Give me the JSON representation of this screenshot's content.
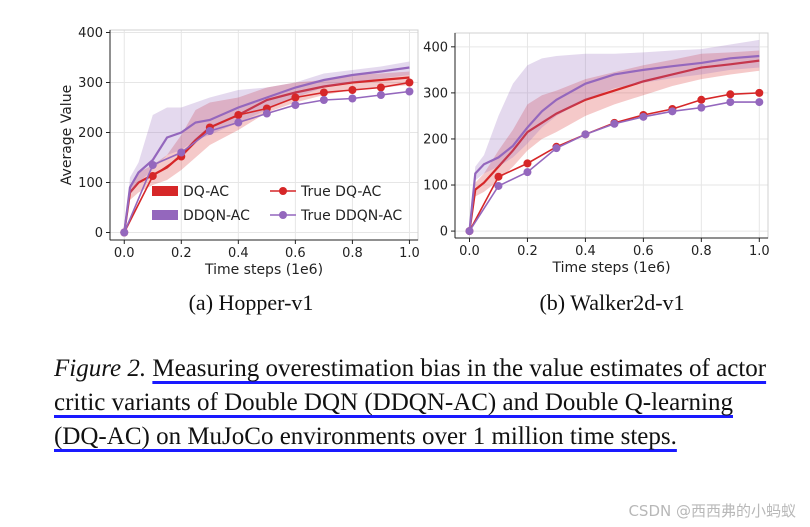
{
  "colors": {
    "dq": "#d62728",
    "ddqn": "#9467bd",
    "grid": "#e6e6e6",
    "axis": "#222222"
  },
  "chart_data": [
    {
      "type": "line",
      "subtitle": "(a) Hopper-v1",
      "xlabel": "Time steps (1e6)",
      "ylabel": "Average Value",
      "xlim": [
        -0.05,
        1.03
      ],
      "ylim": [
        -15,
        405
      ],
      "xticks": [
        0.0,
        0.2,
        0.4,
        0.6,
        0.8,
        1.0
      ],
      "xtick_labels": [
        "0.0",
        "0.2",
        "0.4",
        "0.6",
        "0.8",
        "1.0"
      ],
      "yticks": [
        0,
        100,
        200,
        300,
        400
      ],
      "ytick_labels": [
        "0",
        "100",
        "200",
        "300",
        "400"
      ],
      "grid": true,
      "legend": [
        "DQ-AC",
        "DDQN-AC",
        "True DQ-AC",
        "True DDQN-AC"
      ],
      "legend_placement": "lower-right",
      "series": [
        {
          "name": "DQ-AC",
          "style": "band",
          "color": "dq",
          "x": [
            0,
            0.02,
            0.05,
            0.1,
            0.15,
            0.2,
            0.25,
            0.3,
            0.4,
            0.5,
            0.6,
            0.7,
            0.8,
            0.9,
            1.0
          ],
          "y": [
            0,
            80,
            100,
            115,
            130,
            155,
            185,
            210,
            235,
            265,
            280,
            292,
            300,
            305,
            310
          ],
          "lower": [
            0,
            65,
            80,
            95,
            105,
            125,
            150,
            175,
            205,
            240,
            260,
            275,
            285,
            290,
            295
          ],
          "upper": [
            0,
            95,
            120,
            135,
            155,
            195,
            245,
            260,
            270,
            290,
            300,
            305,
            315,
            318,
            322
          ]
        },
        {
          "name": "DDQN-AC",
          "style": "band",
          "color": "ddqn",
          "x": [
            0,
            0.02,
            0.05,
            0.1,
            0.15,
            0.2,
            0.25,
            0.3,
            0.4,
            0.5,
            0.6,
            0.7,
            0.8,
            0.9,
            1.0
          ],
          "y": [
            0,
            90,
            120,
            145,
            190,
            200,
            220,
            225,
            250,
            270,
            290,
            305,
            315,
            322,
            330
          ],
          "lower": [
            0,
            75,
            100,
            125,
            155,
            165,
            185,
            195,
            220,
            245,
            270,
            290,
            300,
            308,
            315
          ],
          "upper": [
            0,
            110,
            140,
            235,
            250,
            250,
            260,
            270,
            285,
            290,
            300,
            318,
            325,
            332,
            342
          ]
        },
        {
          "name": "True DQ-AC",
          "style": "markers",
          "color": "dq",
          "x": [
            0,
            0.1,
            0.2,
            0.3,
            0.4,
            0.5,
            0.6,
            0.7,
            0.8,
            0.9,
            1.0
          ],
          "y": [
            0,
            113,
            152,
            210,
            235,
            248,
            270,
            280,
            285,
            290,
            300
          ]
        },
        {
          "name": "True DDQN-AC",
          "style": "markers",
          "color": "ddqn",
          "x": [
            0,
            0.1,
            0.2,
            0.3,
            0.4,
            0.5,
            0.6,
            0.7,
            0.8,
            0.9,
            1.0
          ],
          "y": [
            0,
            135,
            160,
            203,
            220,
            238,
            255,
            265,
            268,
            275,
            282
          ]
        }
      ]
    },
    {
      "type": "line",
      "subtitle": "(b) Walker2d-v1",
      "xlabel": "Time steps (1e6)",
      "ylabel": "",
      "xlim": [
        -0.05,
        1.03
      ],
      "ylim": [
        -15,
        430
      ],
      "xticks": [
        0.0,
        0.2,
        0.4,
        0.6,
        0.8,
        1.0
      ],
      "xtick_labels": [
        "0.0",
        "0.2",
        "0.4",
        "0.6",
        "0.8",
        "1.0"
      ],
      "yticks": [
        0,
        100,
        200,
        300,
        400
      ],
      "ytick_labels": [
        "0",
        "100",
        "200",
        "300",
        "400"
      ],
      "grid": true,
      "series": [
        {
          "name": "DQ-AC",
          "style": "band",
          "color": "dq",
          "x": [
            0,
            0.02,
            0.05,
            0.1,
            0.15,
            0.2,
            0.25,
            0.3,
            0.4,
            0.5,
            0.6,
            0.7,
            0.8,
            0.9,
            1.0
          ],
          "y": [
            0,
            90,
            105,
            140,
            175,
            215,
            235,
            255,
            285,
            305,
            325,
            340,
            355,
            362,
            370
          ],
          "lower": [
            0,
            75,
            85,
            110,
            140,
            175,
            200,
            215,
            250,
            275,
            295,
            315,
            330,
            340,
            348
          ],
          "upper": [
            0,
            105,
            125,
            175,
            220,
            275,
            295,
            305,
            330,
            345,
            360,
            372,
            385,
            388,
            392
          ]
        },
        {
          "name": "DDQN-AC",
          "style": "band",
          "color": "ddqn",
          "x": [
            0,
            0.02,
            0.05,
            0.1,
            0.15,
            0.2,
            0.25,
            0.3,
            0.4,
            0.5,
            0.6,
            0.7,
            0.8,
            0.9,
            1.0
          ],
          "y": [
            0,
            125,
            145,
            160,
            185,
            225,
            260,
            285,
            320,
            340,
            350,
            358,
            365,
            375,
            380
          ],
          "lower": [
            0,
            110,
            125,
            140,
            160,
            190,
            225,
            250,
            285,
            310,
            322,
            332,
            340,
            350,
            355
          ],
          "upper": [
            0,
            140,
            165,
            250,
            320,
            360,
            375,
            380,
            385,
            385,
            388,
            392,
            395,
            405,
            415
          ]
        },
        {
          "name": "True DQ-AC",
          "style": "markers",
          "color": "dq",
          "x": [
            0,
            0.1,
            0.2,
            0.3,
            0.4,
            0.5,
            0.6,
            0.7,
            0.8,
            0.9,
            1.0
          ],
          "y": [
            0,
            118,
            147,
            183,
            210,
            235,
            252,
            265,
            285,
            297,
            300
          ]
        },
        {
          "name": "True DDQN-AC",
          "style": "markers",
          "color": "ddqn",
          "x": [
            0,
            0.1,
            0.2,
            0.3,
            0.4,
            0.5,
            0.6,
            0.7,
            0.8,
            0.9,
            1.0
          ],
          "y": [
            0,
            98,
            128,
            180,
            210,
            233,
            248,
            260,
            268,
            280,
            280
          ]
        }
      ]
    }
  ],
  "caption": {
    "figure_label": "Figure 2.",
    "text": "Measuring overestimation bias in the value estimates of actor critic variants of Double DQN (DDQN-AC) and Double Q-learning (DQ-AC) on MuJoCo environments over 1 million time steps."
  },
  "watermark": "CSDN @西西弗的小蚂蚁"
}
